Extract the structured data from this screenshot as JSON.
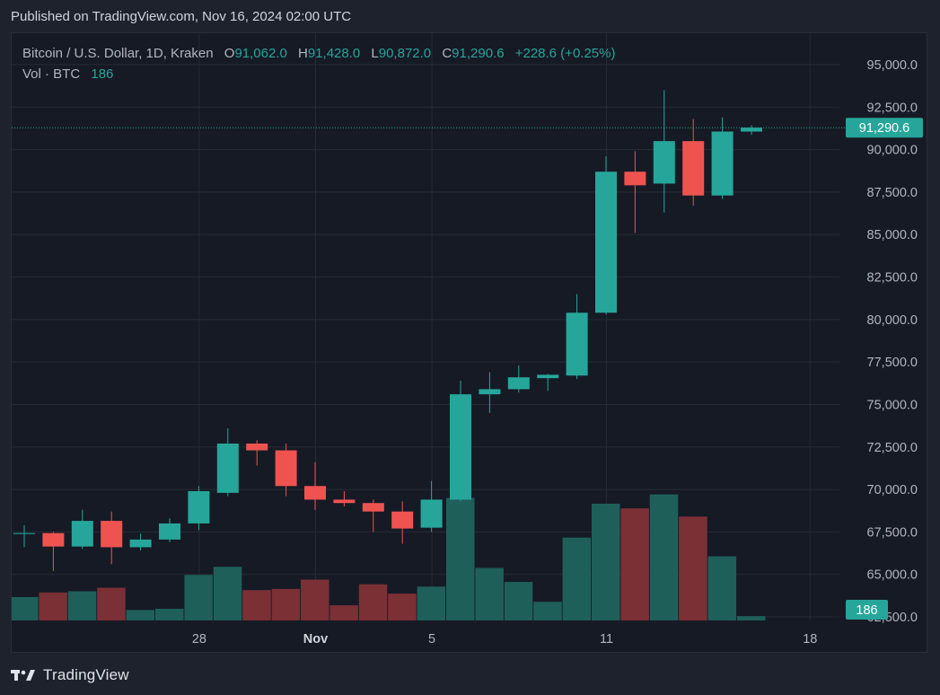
{
  "header": {
    "published": "Published on TradingView.com, Nov 16, 2024 02:00 UTC"
  },
  "legend": {
    "symbol": "Bitcoin / U.S. Dollar, 1D, Kraken",
    "open_label": "O",
    "open": "91,062.0",
    "high_label": "H",
    "high": "91,428.0",
    "low_label": "L",
    "low": "90,872.0",
    "close_label": "C",
    "close": "91,290.6",
    "change": "+228.6 (+0.25%)",
    "vol_label": "Vol · BTC",
    "vol_value": "186"
  },
  "footer": {
    "brand": "TradingView"
  },
  "colors": {
    "up": "#26a69a",
    "down": "#ef5350",
    "up_volume": "#1f5f5a",
    "down_volume": "#7a3035",
    "grid": "#262a35",
    "axis_text": "#b2b5be",
    "price_tag": "#26a69a"
  },
  "chart_data": {
    "type": "candlestick",
    "y_tick_labels": [
      "95,000.0",
      "92,500.0",
      "90,000.0",
      "87,500.0",
      "85,000.0",
      "82,500.0",
      "80,000.0",
      "77,500.0",
      "75,000.0",
      "72,500.0",
      "70,000.0",
      "67,500.0",
      "65,000.0",
      "62,500.0"
    ],
    "y_ticks": [
      95000,
      92500,
      90000,
      87500,
      85000,
      82500,
      80000,
      77500,
      75000,
      72500,
      70000,
      67500,
      65000,
      62500
    ],
    "ylim": [
      62250,
      96500
    ],
    "x_tick_labels": [
      {
        "label": "28",
        "day": 6
      },
      {
        "label": "Nov",
        "day": 10
      },
      {
        "label": "5",
        "day": 14
      },
      {
        "label": "11",
        "day": 20
      },
      {
        "label": "18",
        "day": 27
      }
    ],
    "last_price": 91290.6,
    "last_price_label": "91,290.6",
    "last_volume": 186,
    "last_volume_label": "186",
    "volume_max": 5000,
    "candles": [
      {
        "day": "Oct 22",
        "o": 67390,
        "h": 67900,
        "l": 66600,
        "c": 67430,
        "v": 1000
      },
      {
        "day": "Oct 23",
        "o": 67430,
        "h": 67500,
        "l": 65200,
        "c": 66640,
        "v": 1200
      },
      {
        "day": "Oct 24",
        "o": 66640,
        "h": 68800,
        "l": 66500,
        "c": 68150,
        "v": 1250
      },
      {
        "day": "Oct 25",
        "o": 68150,
        "h": 68700,
        "l": 65600,
        "c": 66600,
        "v": 1400
      },
      {
        "day": "Oct 26",
        "o": 66600,
        "h": 67400,
        "l": 66400,
        "c": 67050,
        "v": 450
      },
      {
        "day": "Oct 27",
        "o": 67050,
        "h": 68300,
        "l": 66900,
        "c": 68000,
        "v": 500
      },
      {
        "day": "Oct 28",
        "o": 68000,
        "h": 70200,
        "l": 67600,
        "c": 69900,
        "v": 1950
      },
      {
        "day": "Oct 29",
        "o": 69800,
        "h": 73600,
        "l": 69600,
        "c": 72700,
        "v": 2300
      },
      {
        "day": "Oct 30",
        "o": 72700,
        "h": 72900,
        "l": 71400,
        "c": 72300,
        "v": 1300
      },
      {
        "day": "Oct 31",
        "o": 72300,
        "h": 72700,
        "l": 69600,
        "c": 70200,
        "v": 1350
      },
      {
        "day": "Nov 1",
        "o": 70200,
        "h": 71600,
        "l": 68800,
        "c": 69400,
        "v": 1750
      },
      {
        "day": "Nov 2",
        "o": 69400,
        "h": 69900,
        "l": 69000,
        "c": 69200,
        "v": 650
      },
      {
        "day": "Nov 3",
        "o": 69200,
        "h": 69400,
        "l": 67500,
        "c": 68700,
        "v": 1550
      },
      {
        "day": "Nov 4",
        "o": 68700,
        "h": 69300,
        "l": 66800,
        "c": 67700,
        "v": 1150
      },
      {
        "day": "Nov 5",
        "o": 67750,
        "h": 70500,
        "l": 67500,
        "c": 69400,
        "v": 1450
      },
      {
        "day": "Nov 6",
        "o": 69400,
        "h": 76400,
        "l": 69300,
        "c": 75600,
        "v": 5250
      },
      {
        "day": "Nov 7",
        "o": 75600,
        "h": 76900,
        "l": 74500,
        "c": 75900,
        "v": 2250
      },
      {
        "day": "Nov 8",
        "o": 75900,
        "h": 77300,
        "l": 75700,
        "c": 76600,
        "v": 1650
      },
      {
        "day": "Nov 9",
        "o": 76550,
        "h": 76800,
        "l": 75800,
        "c": 76750,
        "v": 800
      },
      {
        "day": "Nov 10",
        "o": 76700,
        "h": 81500,
        "l": 76500,
        "c": 80400,
        "v": 3550
      },
      {
        "day": "Nov 11",
        "o": 80400,
        "h": 89600,
        "l": 80300,
        "c": 88700,
        "v": 5000
      },
      {
        "day": "Nov 12",
        "o": 88700,
        "h": 89900,
        "l": 85100,
        "c": 87900,
        "v": 4800
      },
      {
        "day": "Nov 13",
        "o": 88000,
        "h": 93500,
        "l": 86300,
        "c": 90500,
        "v": 5400
      },
      {
        "day": "Nov 14",
        "o": 90500,
        "h": 91800,
        "l": 86700,
        "c": 87300,
        "v": 4450
      },
      {
        "day": "Nov 15",
        "o": 87300,
        "h": 91900,
        "l": 87100,
        "c": 91062,
        "v": 2750
      },
      {
        "day": "Nov 16",
        "o": 91062,
        "h": 91428,
        "l": 90872,
        "c": 91290.6,
        "v": 186
      }
    ]
  }
}
